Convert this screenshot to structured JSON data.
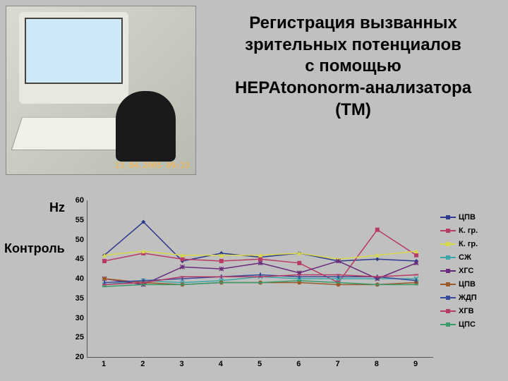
{
  "background_color": "#c0c0c0",
  "photo_timestamp": "13.04.2005 09:23",
  "title_lines": [
    "Регистрация вызванных",
    "зрительных потенциалов",
    "с помощью",
    "HEPAtononorm-анализатора",
    "(ТМ)"
  ],
  "hz_label": "Hz",
  "control_label": "Контроль",
  "chart": {
    "type": "line",
    "x_categories": [
      "1",
      "2",
      "3",
      "4",
      "5",
      "6",
      "7",
      "8",
      "9"
    ],
    "ylim": [
      20,
      60
    ],
    "ytick_step": 5,
    "y_ticks": [
      60,
      55,
      50,
      45,
      40,
      35,
      30,
      25,
      20
    ],
    "grid_color": "#999999",
    "axis_color": "#555555",
    "label_fontsize": 11,
    "series": [
      {
        "name": "ЦПВ",
        "color": "#2e3a8c",
        "marker": "diamond",
        "values": [
          46,
          54.5,
          44.5,
          46.5,
          45.5,
          46.5,
          44.5,
          45,
          44.5
        ]
      },
      {
        "name": "К. гр.",
        "color": "#b83a66",
        "marker": "square",
        "values": [
          44.5,
          46.5,
          45,
          44.5,
          45,
          44,
          39,
          52.5,
          46
        ]
      },
      {
        "name": "К. гр.",
        "color": "#d8d84a",
        "marker": "triangle",
        "values": [
          46,
          47,
          46,
          46,
          46,
          46.5,
          45,
          46,
          47
        ]
      },
      {
        "name": "СЖ",
        "color": "#3aa8a8",
        "marker": "x",
        "values": [
          38.5,
          39.5,
          39,
          39.5,
          40.5,
          40,
          40,
          40,
          40
        ]
      },
      {
        "name": "ХГС",
        "color": "#6a2a7a",
        "marker": "star",
        "values": [
          40,
          38.5,
          43,
          42.5,
          44,
          41.5,
          44.5,
          40,
          44
        ]
      },
      {
        "name": "ЦПВ",
        "color": "#9a5a2a",
        "marker": "circle",
        "values": [
          40,
          39,
          38.5,
          39,
          39,
          39,
          38.5,
          38.5,
          39
        ]
      },
      {
        "name": "ЖДП",
        "color": "#3a4a9a",
        "marker": "bar",
        "values": [
          39,
          39.5,
          40,
          40.5,
          41,
          40.5,
          40.5,
          40.5,
          39.5
        ]
      },
      {
        "name": "ХГВ",
        "color": "#b83a66",
        "marker": "dash",
        "values": [
          38.5,
          39,
          40.5,
          40.5,
          40.5,
          41,
          41,
          40.5,
          41
        ]
      },
      {
        "name": "ЦПС",
        "color": "#3a9a6a",
        "marker": "dash",
        "values": [
          38,
          38.5,
          38.5,
          39,
          39,
          39.5,
          39,
          38.5,
          38.5
        ]
      }
    ]
  }
}
